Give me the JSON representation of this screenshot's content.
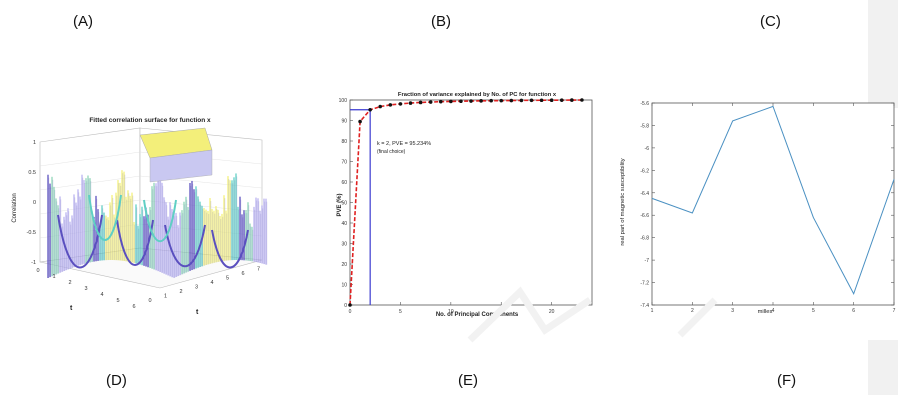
{
  "labels": {
    "A": "(A)",
    "B": "(B)",
    "C": "(C)",
    "D": "(D)",
    "E": "(E)",
    "F": "(F)"
  },
  "colors": {
    "surface_yellow": "#f3ef7a",
    "surface_teal": "#5fcfc4",
    "surface_purple": "#5a4fbf",
    "pve_red": "#e02020",
    "pve_blue": "#3a3ad0",
    "line_blue": "#4a90c2"
  },
  "chart_data": [
    {
      "type": "surface",
      "title": "Fitted correlation surface for function x",
      "zlabel": "Correlation",
      "xlabel": "t",
      "ylabel": "t",
      "x_ticks": [
        "0",
        "1",
        "2",
        "3",
        "4",
        "5",
        "6",
        "7"
      ],
      "y_ticks": [
        "0",
        "1",
        "2",
        "3",
        "4",
        "5",
        "6"
      ],
      "z_ticks": [
        "-1",
        "-0.5",
        "0",
        "0.5",
        "1"
      ],
      "zlim": [
        -1,
        1
      ]
    },
    {
      "type": "line",
      "title": "Fraction of variance explained by No. of PC for function x",
      "xlabel": "No. of Principal Components",
      "ylabel": "PVE (%)",
      "xlim": [
        0,
        24
      ],
      "ylim": [
        0,
        100
      ],
      "x_ticks": [
        0,
        5,
        10,
        15,
        20
      ],
      "y_ticks": [
        0,
        10,
        20,
        30,
        40,
        50,
        60,
        70,
        80,
        90,
        100
      ],
      "x": [
        0,
        1,
        2,
        3,
        4,
        5,
        6,
        7,
        8,
        9,
        10,
        11,
        12,
        13,
        14,
        15,
        16,
        17,
        18,
        19,
        20,
        21,
        22,
        23
      ],
      "values": [
        0,
        89.5,
        95.234,
        96.8,
        97.6,
        98.1,
        98.5,
        98.8,
        99.0,
        99.2,
        99.3,
        99.4,
        99.5,
        99.6,
        99.65,
        99.7,
        99.75,
        99.8,
        99.85,
        99.88,
        99.9,
        99.93,
        99.96,
        100
      ],
      "annotation": "k = 2, PVE = 95.234%",
      "annotation2": "(final choice)",
      "chosen_k": 2,
      "chosen_pve": 95.234
    },
    {
      "type": "line",
      "title": "",
      "xlabel": "milles",
      "ylabel": "real part of magnetic susceptibility",
      "xlim": [
        1,
        7
      ],
      "ylim": [
        -7.4,
        -5.6
      ],
      "x_ticks": [
        1,
        2,
        3,
        4,
        5,
        6,
        7
      ],
      "y_ticks": [
        "-5.6",
        "-5.8",
        "-6",
        "-6.2",
        "-6.4",
        "-6.6",
        "-6.8",
        "-7",
        "-7.2",
        "-7.4"
      ],
      "x": [
        1,
        2,
        3,
        4,
        5,
        6,
        7
      ],
      "values": [
        -6.45,
        -6.58,
        -5.76,
        -5.63,
        -6.62,
        -7.3,
        -6.28
      ]
    }
  ]
}
